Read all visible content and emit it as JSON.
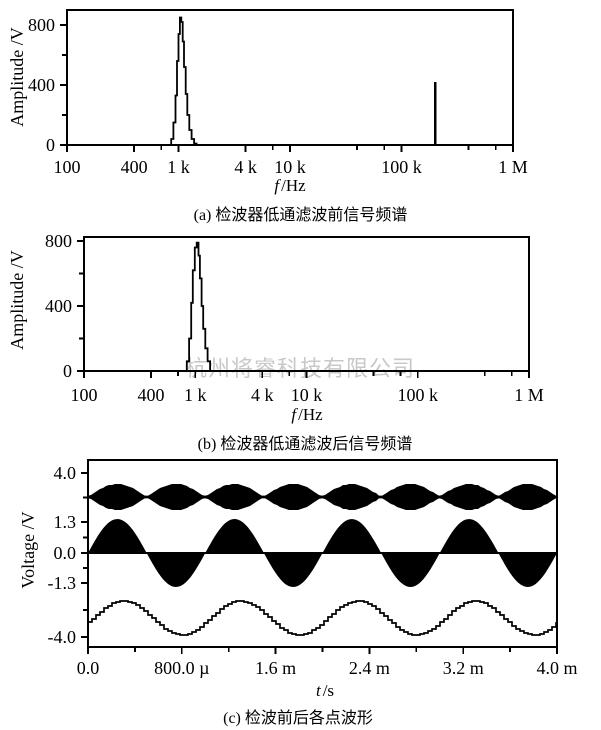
{
  "watermark": "杭州将睿科技有限公司",
  "chart_data": [
    {
      "id": "a",
      "type": "line",
      "subtype": "frequency-spectrum",
      "title": "(a) 检波器低通滤波前信号频谱",
      "ylabel": "Amplitude /V",
      "xlabel_sym": "f",
      "xlabel_unit": "/Hz",
      "x_scale": "log",
      "xlim_hz": [
        100,
        1000000
      ],
      "ylim_v": [
        0,
        900
      ],
      "grid": false,
      "x_ticks": [
        {
          "f": 100,
          "label": "100"
        },
        {
          "f": 400,
          "label": "400"
        },
        {
          "f": 700
        },
        {
          "f": 1000,
          "label": "1 k"
        },
        {
          "f": 4000,
          "label": "4 k"
        },
        {
          "f": 7000
        },
        {
          "f": 10000,
          "label": "10 k"
        },
        {
          "f": 40000
        },
        {
          "f": 70000
        },
        {
          "f": 100000,
          "label": "100 k"
        },
        {
          "f": 400000
        },
        {
          "f": 700000
        },
        {
          "f": 1000000,
          "label": "1 M"
        }
      ],
      "y_ticks": [
        {
          "v": 800,
          "label": "800"
        },
        {
          "v": 600
        },
        {
          "v": 400,
          "label": "400"
        },
        {
          "v": 200
        },
        {
          "v": 0,
          "label": "0"
        }
      ],
      "series": [
        {
          "name": "baseband-peak",
          "style": "step-outline",
          "points_f_v": [
            [
              820,
              0
            ],
            [
              860,
              40
            ],
            [
              900,
              150
            ],
            [
              940,
              330
            ],
            [
              970,
              560
            ],
            [
              1000,
              740
            ],
            [
              1030,
              850
            ],
            [
              1060,
              820
            ],
            [
              1090,
              690
            ],
            [
              1120,
              520
            ],
            [
              1160,
              340
            ],
            [
              1200,
              200
            ],
            [
              1250,
              100
            ],
            [
              1310,
              40
            ],
            [
              1380,
              10
            ],
            [
              1450,
              0
            ]
          ]
        },
        {
          "name": "carrier-spike",
          "style": "impulse",
          "f": 200000,
          "v": 420
        }
      ]
    },
    {
      "id": "b",
      "type": "line",
      "subtype": "frequency-spectrum",
      "title": "(b) 检波器低通滤波后信号频谱",
      "ylabel": "Amplitude /V",
      "xlabel_sym": "f",
      "xlabel_unit": "/Hz",
      "x_scale": "log",
      "xlim_hz": [
        100,
        1000000
      ],
      "ylim_v": [
        0,
        820
      ],
      "grid": false,
      "x_ticks": [
        {
          "f": 100,
          "label": "100"
        },
        {
          "f": 400,
          "label": "400"
        },
        {
          "f": 700
        },
        {
          "f": 1000,
          "label": "1 k"
        },
        {
          "f": 4000,
          "label": "4 k"
        },
        {
          "f": 7000
        },
        {
          "f": 10000,
          "label": "10 k"
        },
        {
          "f": 40000
        },
        {
          "f": 70000
        },
        {
          "f": 100000,
          "label": "100 k"
        },
        {
          "f": 400000
        },
        {
          "f": 700000
        },
        {
          "f": 1000000,
          "label": "1 M"
        }
      ],
      "y_ticks": [
        {
          "v": 800,
          "label": "800"
        },
        {
          "v": 600
        },
        {
          "v": 400,
          "label": "400"
        },
        {
          "v": 200
        },
        {
          "v": 0,
          "label": "0"
        }
      ],
      "series": [
        {
          "name": "baseband-peak",
          "style": "step-outline",
          "points_f_v": [
            [
              800,
              0
            ],
            [
              840,
              60
            ],
            [
              880,
              200
            ],
            [
              920,
              420
            ],
            [
              950,
              620
            ],
            [
              990,
              760
            ],
            [
              1030,
              790
            ],
            [
              1070,
              710
            ],
            [
              1100,
              570
            ],
            [
              1140,
              400
            ],
            [
              1180,
              260
            ],
            [
              1230,
              140
            ],
            [
              1290,
              60
            ],
            [
              1360,
              0
            ]
          ]
        }
      ]
    },
    {
      "id": "c",
      "type": "line",
      "subtype": "time-waveforms",
      "title": "(c) 检波前后各点波形",
      "ylabel": "Voltage /V",
      "xlabel_sym": "t",
      "xlabel_unit": "/s",
      "xlim_s": [
        0,
        0.004
      ],
      "grid": false,
      "x_ticks": [
        {
          "t": 0,
          "label": "0.0"
        },
        {
          "t": 0.0004
        },
        {
          "t": 0.0008,
          "label": "800.0 µ"
        },
        {
          "t": 0.0012
        },
        {
          "t": 0.0016,
          "label": "1.6 m"
        },
        {
          "t": 0.002
        },
        {
          "t": 0.0024,
          "label": "2.4 m"
        },
        {
          "t": 0.0028
        },
        {
          "t": 0.0032,
          "label": "3.2 m"
        },
        {
          "t": 0.0036
        },
        {
          "t": 0.004,
          "label": "4.0 m"
        }
      ],
      "y_tick_labels": [
        "4.0",
        "1.3",
        "0.0",
        "-1.3",
        "-4.0"
      ],
      "traces": [
        {
          "name": "am-signal-input",
          "kind": "dsb-envelope",
          "mod_hz": 1000,
          "beads": 8,
          "center_v": 2.65,
          "env_peak_v": 0.55
        },
        {
          "name": "multiplier-output",
          "kind": "filled-sine",
          "freq_hz": 1000,
          "center_v": 0.0,
          "peak_v": 1.45
        },
        {
          "name": "lpf-output",
          "kind": "stepped-sine",
          "freq_hz": 1000,
          "center_v": -2.95,
          "peak_v": 0.8,
          "phase_lag_deg": 15
        }
      ]
    }
  ]
}
